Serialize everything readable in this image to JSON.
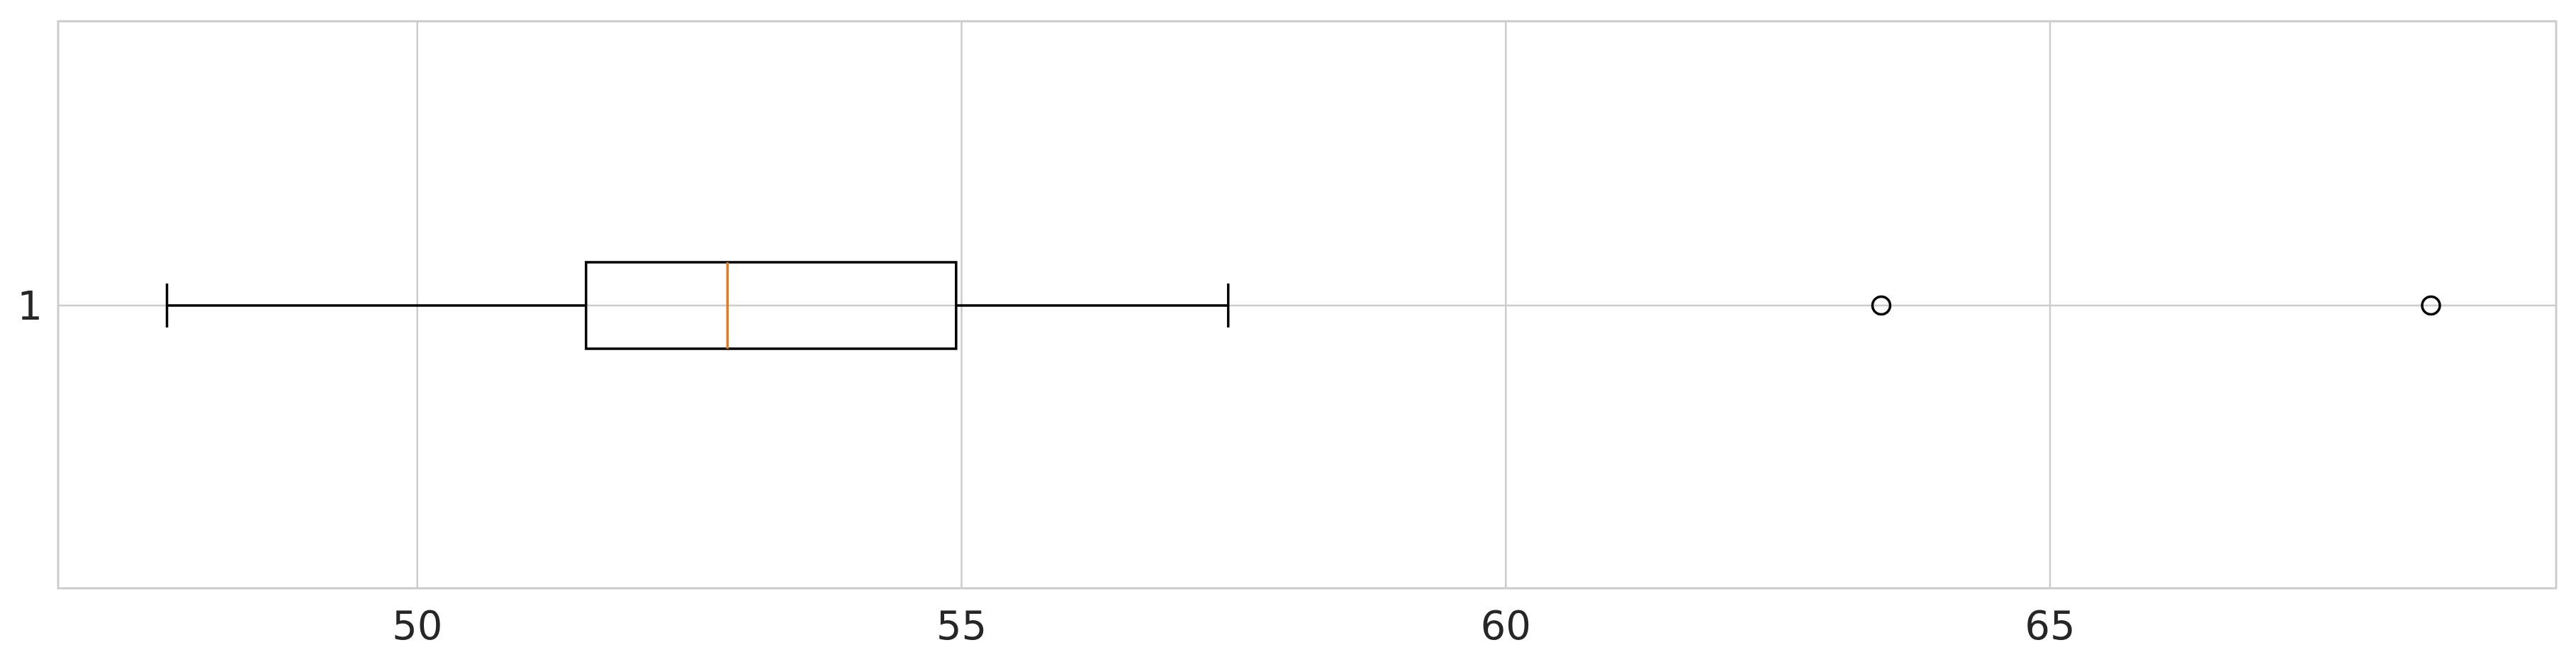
{
  "chart_data": {
    "type": "boxplot",
    "orientation": "horizontal",
    "title": "",
    "xlabel": "",
    "ylabel": "",
    "xlim": [
      46.7,
      69.65
    ],
    "x_ticks": [
      50,
      55,
      60,
      65
    ],
    "y_ticks": [
      "1"
    ],
    "grid": true,
    "boxes": [
      {
        "label": "1",
        "whisker_low": 47.7,
        "q1": 51.55,
        "median": 52.85,
        "q3": 54.95,
        "whisker_high": 57.45,
        "outliers": [
          63.45,
          68.5
        ]
      }
    ],
    "colors": {
      "box": "#000000",
      "median": "#e07b21",
      "grid": "#cccccc",
      "spine": "#cccccc",
      "text": "#262626"
    }
  }
}
